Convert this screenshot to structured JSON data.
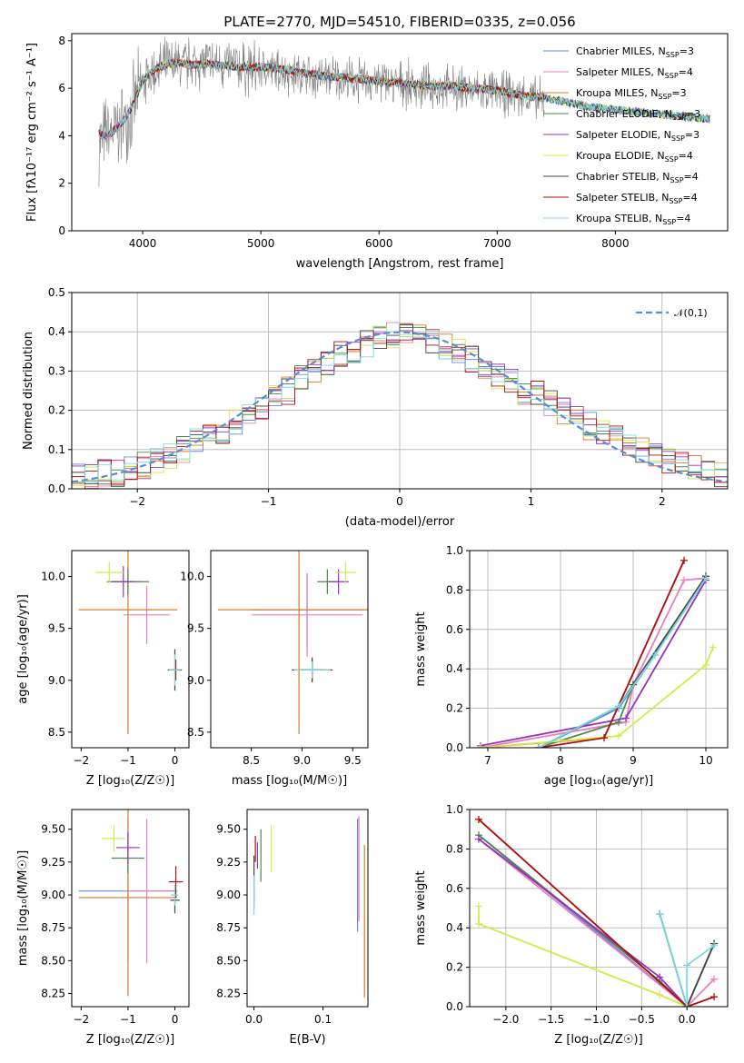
{
  "figure_title": "PLATE=2770, MJD=54510, FIBERID=0335, z=0.056",
  "models": [
    {
      "name": "Chabrier MILES",
      "nssp": "3",
      "color": "#6688dd"
    },
    {
      "name": "Salpeter MILES",
      "nssp": "4",
      "color": "#e77fc0"
    },
    {
      "name": "Kroupa MILES",
      "nssp": "3",
      "color": "#e07828"
    },
    {
      "name": "Chabrier ELODIE",
      "nssp": "3",
      "color": "#4a8a4a"
    },
    {
      "name": "Salpeter ELODIE",
      "nssp": "3",
      "color": "#9933bb"
    },
    {
      "name": "Kroupa ELODIE",
      "nssp": "4",
      "color": "#d6e84a"
    },
    {
      "name": "Chabrier STELIB",
      "nssp": "4",
      "color": "#444444"
    },
    {
      "name": "Salpeter STELIB",
      "nssp": "4",
      "color": "#aa1111"
    },
    {
      "name": "Kroupa STELIB",
      "nssp": "4",
      "color": "#77d8e0"
    }
  ],
  "chart_data": [
    {
      "id": "spectrum",
      "type": "line",
      "xlabel": "wavelength [Angstrom, rest frame]",
      "ylabel": "Flux [fλ10⁻¹⁷ erg cm⁻² s⁻¹ A⁻¹]",
      "xlim": [
        3400,
        8950
      ],
      "ylim": [
        0,
        8.3
      ],
      "xticks": [
        4000,
        5000,
        6000,
        7000,
        8000
      ],
      "yticks": [
        0,
        2,
        4,
        6,
        8
      ],
      "grid": false,
      "legend": "top-right",
      "observed": {
        "color": "#808080",
        "x": [
          3630,
          3700,
          3800,
          3900,
          4000,
          4100,
          4200,
          4300,
          4400,
          4500,
          4600,
          4700,
          4800,
          4900,
          5000,
          5200,
          5400,
          5600,
          5800,
          6000,
          6200,
          6400,
          6600,
          6800,
          7000,
          7200,
          7400
        ],
        "y": [
          3.8,
          4.0,
          4.3,
          5.0,
          6.2,
          6.7,
          6.9,
          7.0,
          7.0,
          7.1,
          7.0,
          7.0,
          6.9,
          6.8,
          6.8,
          6.7,
          6.5,
          6.5,
          6.3,
          6.3,
          6.2,
          6.0,
          6.0,
          5.9,
          5.8,
          5.7,
          5.4
        ]
      },
      "model_curve": {
        "x": [
          3630,
          3700,
          3800,
          3900,
          4000,
          4100,
          4200,
          4300,
          4400,
          4600,
          4800,
          5000,
          5200,
          5400,
          5600,
          5800,
          6000,
          6200,
          6400,
          6600,
          6800,
          7000,
          7200,
          7400,
          7600,
          7800,
          8000,
          8200,
          8400,
          8600,
          8800
        ],
        "y": [
          4.1,
          4.0,
          4.4,
          5.1,
          6.3,
          6.8,
          7.0,
          7.1,
          7.0,
          7.0,
          6.9,
          6.9,
          6.8,
          6.6,
          6.5,
          6.4,
          6.3,
          6.2,
          6.1,
          6.1,
          6.0,
          5.9,
          5.7,
          5.6,
          5.4,
          5.2,
          5.1,
          5.0,
          4.9,
          4.8,
          4.7
        ]
      }
    },
    {
      "id": "residuals",
      "type": "line",
      "xlabel": "(data-model)/error",
      "ylabel": "Normed distribution",
      "xlim": [
        -2.5,
        2.5
      ],
      "ylim": [
        0,
        0.5
      ],
      "xticks": [
        -2,
        -1,
        0,
        1,
        2
      ],
      "yticks": [
        0.0,
        0.1,
        0.2,
        0.3,
        0.4,
        0.5
      ],
      "grid": true,
      "legend": "top-right",
      "reference_label": "𝒩(0,1)",
      "reference_color": "#5b8bd6",
      "reference": {
        "mean": 0,
        "sigma": 1
      },
      "bins": [
        -2.5,
        -2.4,
        -2.3,
        -2.2,
        -2.1,
        -2.0,
        -1.9,
        -1.8,
        -1.7,
        -1.6,
        -1.5,
        -1.4,
        -1.3,
        -1.2,
        -1.1,
        -1.0,
        -0.9,
        -0.8,
        -0.7,
        -0.6,
        -0.5,
        -0.4,
        -0.3,
        -0.2,
        -0.1,
        0.0,
        0.1,
        0.2,
        0.3,
        0.4,
        0.5,
        0.6,
        0.7,
        0.8,
        0.9,
        1.0,
        1.1,
        1.2,
        1.3,
        1.4,
        1.5,
        1.6,
        1.7,
        1.8,
        1.9,
        2.0,
        2.1,
        2.2,
        2.3,
        2.4,
        2.5
      ],
      "hist_base": [
        0.03,
        0.03,
        0.04,
        0.04,
        0.05,
        0.06,
        0.07,
        0.08,
        0.1,
        0.12,
        0.13,
        0.15,
        0.17,
        0.19,
        0.21,
        0.23,
        0.25,
        0.28,
        0.3,
        0.32,
        0.34,
        0.35,
        0.37,
        0.38,
        0.39,
        0.4,
        0.39,
        0.38,
        0.36,
        0.35,
        0.33,
        0.31,
        0.29,
        0.27,
        0.25,
        0.24,
        0.22,
        0.2,
        0.18,
        0.16,
        0.14,
        0.13,
        0.11,
        0.1,
        0.08,
        0.07,
        0.06,
        0.05,
        0.04,
        0.04
      ]
    },
    {
      "id": "age-vs-Z",
      "type": "scatter",
      "xlabel": "Z [log₁₀(Z/Z☉)]",
      "ylabel": "age  [log₁₀(age/yr)]",
      "xlim": [
        -2.2,
        0.3
      ],
      "ylim": [
        8.35,
        10.25
      ],
      "xticks": [
        -2,
        -1,
        0
      ],
      "yticks": [
        8.5,
        9.0,
        9.5,
        10.0
      ],
      "grid": false,
      "points": [
        {
          "m": 0,
          "x": -1.0,
          "y": 9.95,
          "xerr": 0.3,
          "yerr": 0.15
        },
        {
          "m": 1,
          "x": -0.6,
          "y": 9.63,
          "xerr": 0.5,
          "yerr": 0.28
        },
        {
          "m": 2,
          "x": -1.0,
          "y": 9.68,
          "xerr": 1.05,
          "yerr": 1.2
        },
        {
          "m": 3,
          "x": -1.0,
          "y": 9.95,
          "xerr": 0.45,
          "yerr": 0.12
        },
        {
          "m": 4,
          "x": -1.1,
          "y": 9.95,
          "xerr": 0.25,
          "yerr": 0.15
        },
        {
          "m": 5,
          "x": -1.4,
          "y": 10.04,
          "xerr": 0.3,
          "yerr": 0.1
        },
        {
          "m": 6,
          "x": 0.0,
          "y": 9.1,
          "xerr": 0.15,
          "yerr": 0.2
        },
        {
          "m": 7,
          "x": 0.02,
          "y": 9.1,
          "xerr": 0.08,
          "yerr": 0.1
        },
        {
          "m": 8,
          "x": 0.0,
          "y": 9.1,
          "xerr": 0.12,
          "yerr": 0.15
        }
      ]
    },
    {
      "id": "age-vs-mass",
      "type": "scatter",
      "xlabel": "mass [log₁₀(M/M☉)]",
      "ylabel": "",
      "xlim": [
        8.1,
        9.65
      ],
      "ylim": [
        8.35,
        10.25
      ],
      "xticks": [
        8.5,
        9.0,
        9.5
      ],
      "yticks": [
        8.5,
        9.0,
        9.5,
        10.0
      ],
      "grid": false,
      "points": [
        {
          "m": 0,
          "x": 9.05,
          "y": 9.68,
          "xerr": 0.55,
          "yerr": 0.35
        },
        {
          "m": 1,
          "x": 9.05,
          "y": 9.63,
          "xerr": 0.55,
          "yerr": 0.4
        },
        {
          "m": 2,
          "x": 8.97,
          "y": 9.68,
          "xerr": 0.8,
          "yerr": 1.2
        },
        {
          "m": 3,
          "x": 9.25,
          "y": 9.95,
          "xerr": 0.1,
          "yerr": 0.12
        },
        {
          "m": 4,
          "x": 9.36,
          "y": 9.95,
          "xerr": 0.1,
          "yerr": 0.12
        },
        {
          "m": 5,
          "x": 9.43,
          "y": 10.04,
          "xerr": 0.1,
          "yerr": 0.1
        },
        {
          "m": 6,
          "x": 9.1,
          "y": 9.1,
          "xerr": 0.12,
          "yerr": 0.1
        },
        {
          "m": 7,
          "x": 9.1,
          "y": 9.1,
          "xerr": 0.2,
          "yerr": 0.12
        },
        {
          "m": 8,
          "x": 9.1,
          "y": 9.1,
          "xerr": 0.18,
          "yerr": 0.08
        }
      ]
    },
    {
      "id": "weight-vs-age",
      "type": "line",
      "xlabel": "age  [log₁₀(age/yr)]",
      "ylabel": "mass weight",
      "xlim": [
        6.75,
        10.3
      ],
      "ylim": [
        0,
        1
      ],
      "xticks": [
        7,
        8,
        9,
        10
      ],
      "yticks": [
        0.0,
        0.2,
        0.4,
        0.6,
        0.8,
        1.0
      ],
      "grid": true,
      "series": [
        {
          "m": 0,
          "x": [
            7.7,
            8.8,
            9.3,
            10.0
          ],
          "y": [
            0.0,
            0.2,
            0.47,
            0.86
          ]
        },
        {
          "m": 1,
          "x": [
            6.9,
            8.9,
            9.0,
            9.7,
            10.0
          ],
          "y": [
            0.0,
            0.13,
            0.32,
            0.85,
            0.86
          ]
        },
        {
          "m": 2,
          "x": [
            6.9,
            8.6,
            9.7
          ],
          "y": [
            0.0,
            0.05,
            0.95
          ]
        },
        {
          "m": 3,
          "x": [
            7.7,
            8.8,
            9.0,
            10.0
          ],
          "y": [
            0.0,
            0.13,
            0.32,
            0.87
          ]
        },
        {
          "m": 4,
          "x": [
            6.9,
            8.9,
            10.0
          ],
          "y": [
            0.01,
            0.15,
            0.85
          ]
        },
        {
          "m": 5,
          "x": [
            6.9,
            8.8,
            10.0,
            10.1
          ],
          "y": [
            0.0,
            0.06,
            0.42,
            0.51
          ]
        },
        {
          "m": 6,
          "x": [
            7.7,
            8.8,
            9.0,
            10.0
          ],
          "y": [
            0.0,
            0.21,
            0.32,
            0.87
          ]
        },
        {
          "m": 7,
          "x": [
            7.7,
            8.6,
            9.7
          ],
          "y": [
            0.0,
            0.05,
            0.95
          ]
        },
        {
          "m": 8,
          "x": [
            7.7,
            8.8,
            9.3,
            10.0
          ],
          "y": [
            0.0,
            0.21,
            0.47,
            0.86
          ]
        }
      ]
    },
    {
      "id": "mass-vs-Z",
      "type": "scatter",
      "xlabel": "Z [log₁₀(Z/Z☉)]",
      "ylabel": "mass [log₁₀(M/M☉)]",
      "xlim": [
        -2.2,
        0.3
      ],
      "ylim": [
        8.15,
        9.65
      ],
      "xticks": [
        -2,
        -1,
        0
      ],
      "yticks": [
        8.25,
        8.5,
        8.75,
        9.0,
        9.25,
        9.5
      ],
      "grid": false,
      "points": [
        {
          "m": 0,
          "x": -1.0,
          "y": 9.03,
          "xerr": 1.05,
          "yerr": 0.55
        },
        {
          "m": 1,
          "x": -0.6,
          "y": 9.03,
          "xerr": 0.5,
          "yerr": 0.55
        },
        {
          "m": 2,
          "x": -1.0,
          "y": 8.98,
          "xerr": 1.05,
          "yerr": 0.75
        },
        {
          "m": 3,
          "x": -1.0,
          "y": 9.28,
          "xerr": 0.35,
          "yerr": 0.12
        },
        {
          "m": 4,
          "x": -1.0,
          "y": 9.36,
          "xerr": 0.25,
          "yerr": 0.12
        },
        {
          "m": 5,
          "x": -1.3,
          "y": 9.43,
          "xerr": 0.25,
          "yerr": 0.1
        },
        {
          "m": 6,
          "x": 0.0,
          "y": 8.96,
          "xerr": 0.1,
          "yerr": 0.1
        },
        {
          "m": 7,
          "x": 0.02,
          "y": 9.1,
          "xerr": 0.15,
          "yerr": 0.12
        },
        {
          "m": 8,
          "x": 0.0,
          "y": 9.0,
          "xerr": 0.08,
          "yerr": 0.08
        }
      ]
    },
    {
      "id": "mass-vs-ebv",
      "type": "scatter",
      "xlabel": "E(B-V)",
      "ylabel": "",
      "xlim": [
        -0.01,
        0.165
      ],
      "ylim": [
        8.15,
        9.65
      ],
      "xticks": [
        0.0,
        0.1
      ],
      "yticks": [
        8.25,
        8.5,
        8.75,
        9.0,
        9.25,
        9.5
      ],
      "grid": false,
      "points": [
        {
          "m": 0,
          "x": 0.15,
          "y": 9.15,
          "xerr": 0,
          "yerr": 0.43
        },
        {
          "m": 1,
          "x": 0.152,
          "y": 9.2,
          "xerr": 0,
          "yerr": 0.4
        },
        {
          "m": 2,
          "x": 0.16,
          "y": 8.8,
          "xerr": 0,
          "yerr": 0.58
        },
        {
          "m": 3,
          "x": 0.01,
          "y": 9.3,
          "xerr": 0,
          "yerr": 0.2
        },
        {
          "m": 4,
          "x": 0.005,
          "y": 9.3,
          "xerr": 0,
          "yerr": 0.1
        },
        {
          "m": 5,
          "x": 0.025,
          "y": 9.35,
          "xerr": 0,
          "yerr": 0.18
        },
        {
          "m": 6,
          "x": 0.0,
          "y": 9.1,
          "xerr": 0,
          "yerr": 0.2
        },
        {
          "m": 7,
          "x": 0.002,
          "y": 9.35,
          "xerr": 0,
          "yerr": 0.1
        },
        {
          "m": 8,
          "x": 0.0,
          "y": 9.0,
          "xerr": 0,
          "yerr": 0.15
        }
      ]
    },
    {
      "id": "weight-vs-Z",
      "type": "line",
      "xlabel": "Z [log₁₀(Z/Z☉)]",
      "ylabel": "mass weight",
      "xlim": [
        -2.4,
        0.45
      ],
      "ylim": [
        0,
        1
      ],
      "xticks": [
        -2.0,
        -1.5,
        -1.0,
        -0.5,
        0.0
      ],
      "yticks": [
        0.0,
        0.2,
        0.4,
        0.6,
        0.8,
        1.0
      ],
      "grid": true,
      "series": [
        {
          "m": 0,
          "x": [
            -2.3,
            0.0,
            0.3
          ],
          "y": [
            0.87,
            0.0,
            0.32
          ]
        },
        {
          "m": 1,
          "x": [
            -2.3,
            0.0,
            0.3
          ],
          "y": [
            0.85,
            0.0,
            0.14
          ]
        },
        {
          "m": 2,
          "x": [
            -2.3,
            0.0,
            0.3
          ],
          "y": [
            0.95,
            0.0,
            0.05
          ]
        },
        {
          "m": 3,
          "x": [
            -2.3,
            -0.3,
            0.0
          ],
          "y": [
            0.87,
            0.13,
            0.0
          ]
        },
        {
          "m": 4,
          "x": [
            -2.3,
            -0.3,
            0.0
          ],
          "y": [
            0.85,
            0.15,
            0.0
          ]
        },
        {
          "m": 5,
          "x": [
            -2.3,
            -2.3,
            -0.3,
            0.0
          ],
          "y": [
            0.51,
            0.42,
            0.06,
            0.0
          ]
        },
        {
          "m": 6,
          "x": [
            -0.3,
            0.0,
            0.3
          ],
          "y": [
            0.47,
            0.0,
            0.32
          ]
        },
        {
          "m": 7,
          "x": [
            -2.3,
            0.0,
            0.3
          ],
          "y": [
            0.95,
            0.0,
            0.05
          ]
        },
        {
          "m": 8,
          "x": [
            -0.3,
            0.0,
            0.0,
            0.3
          ],
          "y": [
            0.47,
            0.0,
            0.21,
            0.31
          ]
        }
      ]
    }
  ]
}
